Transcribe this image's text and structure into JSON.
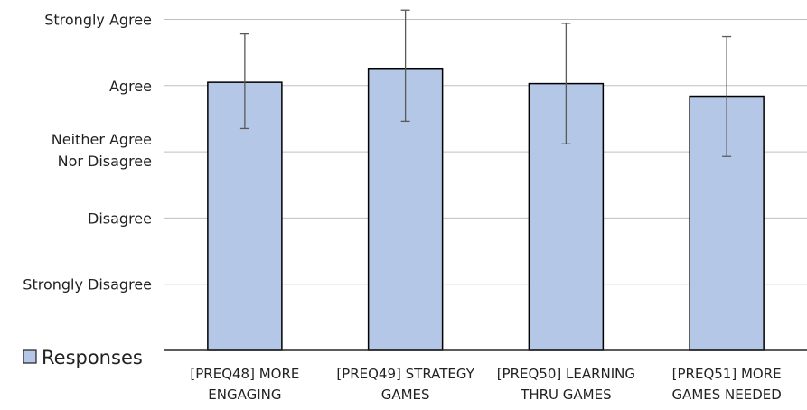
{
  "chart_data": {
    "type": "bar",
    "categories": [
      [
        "[PREQ48] MORE",
        "ENGAGING"
      ],
      [
        "[PREQ49] STRATEGY",
        "GAMES"
      ],
      [
        "[PREQ50] LEARNING",
        "THRU GAMES"
      ],
      [
        "[PREQ51] MORE",
        "GAMES NEEDED"
      ]
    ],
    "series": [
      {
        "name": "Responses",
        "values": [
          4.05,
          4.26,
          4.03,
          3.84
        ],
        "error_low": [
          3.35,
          3.46,
          3.12,
          2.93
        ],
        "error_high": [
          4.78,
          5.14,
          4.94,
          4.74
        ],
        "fill": "#b4c7e7",
        "stroke": "#000000"
      }
    ],
    "y_ticks": [
      {
        "value": 1,
        "label": [
          "Strongly Disagree"
        ]
      },
      {
        "value": 2,
        "label": [
          "Disagree"
        ]
      },
      {
        "value": 3,
        "label": [
          "Neither Agree",
          "Nor Disagree"
        ]
      },
      {
        "value": 4,
        "label": [
          "Agree"
        ]
      },
      {
        "value": 5,
        "label": [
          "Strongly Agree"
        ]
      }
    ],
    "ylim": [
      0,
      5
    ],
    "grid": true,
    "legend": "bottom-left",
    "title": "",
    "xlabel": "",
    "ylabel": "",
    "colors": {
      "grid": "#bfbfbf",
      "axis": "#262626",
      "error_bar": "#595959"
    }
  }
}
